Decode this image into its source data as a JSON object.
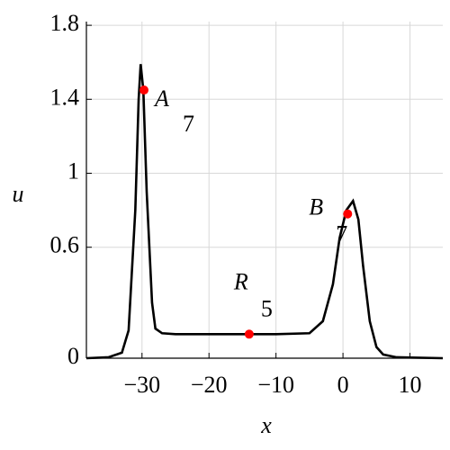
{
  "chart_data": {
    "type": "line",
    "xlabel": "x",
    "ylabel": "u",
    "x": [
      -38.3,
      -35,
      -33,
      -32,
      -31,
      -30.5,
      -30.2,
      -29.8,
      -29.3,
      -28.5,
      -28,
      -27,
      -25,
      -20,
      -10,
      -5,
      -3,
      -1.5,
      -0.5,
      0.5,
      1.5,
      2.3,
      3,
      4,
      5,
      6,
      8,
      14.9
    ],
    "values": [
      0,
      0.005,
      0.03,
      0.15,
      0.8,
      1.4,
      1.59,
      1.45,
      0.9,
      0.3,
      0.16,
      0.135,
      0.13,
      0.13,
      0.13,
      0.135,
      0.2,
      0.4,
      0.65,
      0.8,
      0.85,
      0.75,
      0.5,
      0.2,
      0.06,
      0.02,
      0.005,
      0
    ],
    "color": "#000000",
    "points": [
      {
        "label": "A",
        "subscript": "7",
        "x": -29.7,
        "y": 1.45
      },
      {
        "label": "R",
        "subscript": "5",
        "x": -14,
        "y": 0.13
      },
      {
        "label": "B",
        "subscript": "7",
        "x": 0.7,
        "y": 0.78
      }
    ],
    "point_color": "#ff0000",
    "xlim": [
      -38.3,
      14.9
    ],
    "ylim": [
      0,
      1.82
    ],
    "xticks": [
      {
        "value": -30,
        "label": "−30"
      },
      {
        "value": -20,
        "label": "−20"
      },
      {
        "value": -10,
        "label": "−10"
      },
      0,
      10
    ],
    "yticks": [
      0,
      0.6,
      1,
      1.4,
      1.8
    ],
    "grid": true
  }
}
